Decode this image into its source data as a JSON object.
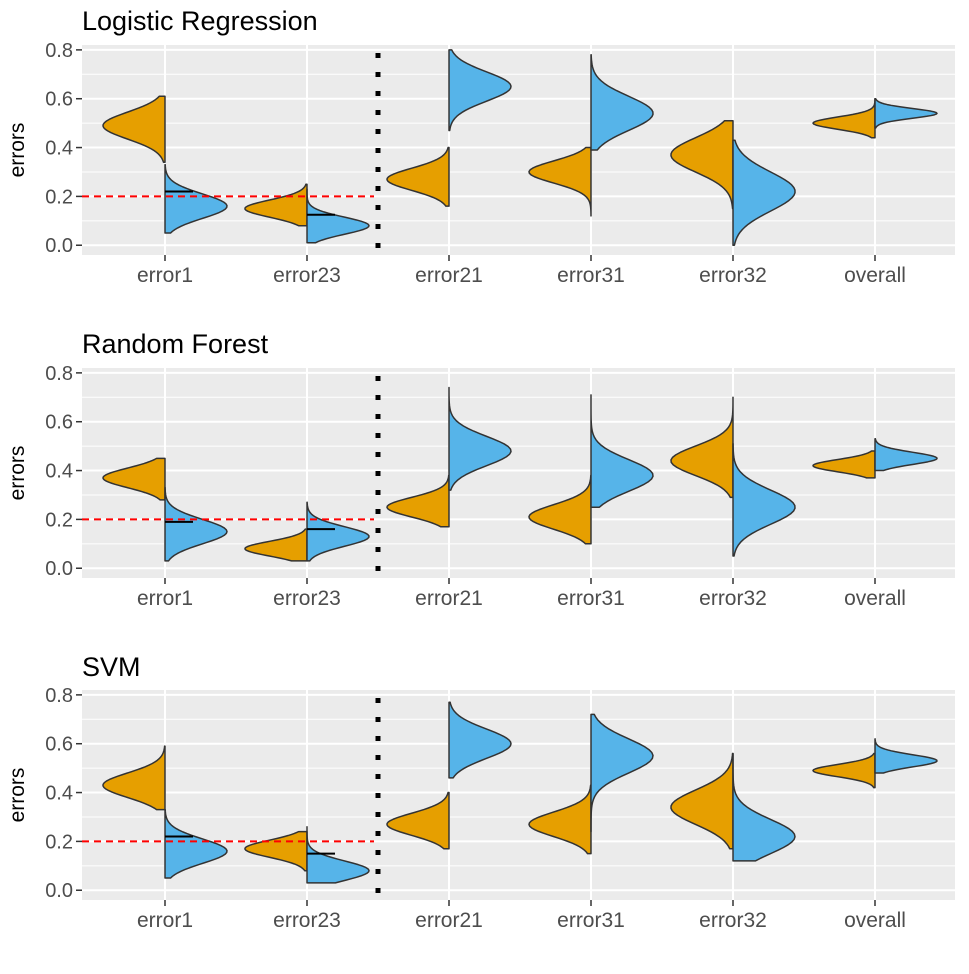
{
  "ylabel": "errors",
  "categories": [
    "error1",
    "error23",
    "error21",
    "error31",
    "error32",
    "overall"
  ],
  "yticks": [
    "0.0",
    "0.2",
    "0.4",
    "0.6",
    "0.8"
  ],
  "ylim": [
    -0.04,
    0.82
  ],
  "reference_line": 0.2,
  "divider_after_category": "error23",
  "colors": {
    "panel_bg": "#ebebeb",
    "grid": "#ffffff",
    "orange": "#e69f00",
    "blue": "#56b4e9",
    "outline": "#333333",
    "refline": "#ff0000",
    "divider": "#000000",
    "tick_text": "#4d4d4d"
  },
  "chart_data": [
    {
      "type": "split-violin",
      "title": "Logistic Regression",
      "ylabel": "errors",
      "categories": [
        "error1",
        "error23",
        "error21",
        "error31",
        "error32",
        "overall"
      ],
      "series": [
        {
          "name": "orange",
          "color": "#e69f00",
          "side": "left",
          "violins": [
            {
              "range": [
                0.34,
                0.61
              ],
              "mode": 0.49,
              "spread": 0.055
            },
            {
              "range": [
                0.08,
                0.25
              ],
              "mode": 0.15,
              "spread": 0.035
            },
            {
              "range": [
                0.16,
                0.4
              ],
              "mode": 0.27,
              "spread": 0.045
            },
            {
              "range": [
                0.12,
                0.4
              ],
              "mode": 0.3,
              "spread": 0.045
            },
            {
              "range": [
                0.15,
                0.51
              ],
              "mode": 0.37,
              "spread": 0.07
            },
            {
              "range": [
                0.44,
                0.6
              ],
              "mode": 0.5,
              "spread": 0.025
            }
          ]
        },
        {
          "name": "blue",
          "color": "#56b4e9",
          "side": "right",
          "violins": [
            {
              "range": [
                0.05,
                0.33
              ],
              "mode": 0.16,
              "spread": 0.05
            },
            {
              "range": [
                0.01,
                0.23
              ],
              "mode": 0.08,
              "spread": 0.035
            },
            {
              "range": [
                0.47,
                0.8
              ],
              "mode": 0.65,
              "spread": 0.06
            },
            {
              "range": [
                0.39,
                0.78
              ],
              "mode": 0.54,
              "spread": 0.07
            },
            {
              "range": [
                0.0,
                0.43
              ],
              "mode": 0.22,
              "spread": 0.08
            },
            {
              "range": [
                0.48,
                0.6
              ],
              "mode": 0.54,
              "spread": 0.02
            }
          ]
        }
      ],
      "median_marks": [
        {
          "category": "error1",
          "value": 0.22
        },
        {
          "category": "error23",
          "value": 0.125
        }
      ],
      "reference_line": 0.2,
      "ylim": [
        -0.04,
        0.82
      ]
    },
    {
      "type": "split-violin",
      "title": "Random Forest",
      "ylabel": "errors",
      "categories": [
        "error1",
        "error23",
        "error21",
        "error31",
        "error32",
        "overall"
      ],
      "series": [
        {
          "name": "orange",
          "color": "#e69f00",
          "side": "left",
          "violins": [
            {
              "range": [
                0.28,
                0.45
              ],
              "mode": 0.37,
              "spread": 0.04
            },
            {
              "range": [
                0.03,
                0.16
              ],
              "mode": 0.08,
              "spread": 0.03
            },
            {
              "range": [
                0.17,
                0.38
              ],
              "mode": 0.25,
              "spread": 0.04
            },
            {
              "range": [
                0.1,
                0.38
              ],
              "mode": 0.21,
              "spread": 0.05
            },
            {
              "range": [
                0.29,
                0.7
              ],
              "mode": 0.44,
              "spread": 0.06
            },
            {
              "range": [
                0.37,
                0.48
              ],
              "mode": 0.42,
              "spread": 0.025
            }
          ]
        },
        {
          "name": "blue",
          "color": "#56b4e9",
          "side": "right",
          "violins": [
            {
              "range": [
                0.03,
                0.33
              ],
              "mode": 0.15,
              "spread": 0.05
            },
            {
              "range": [
                0.03,
                0.27
              ],
              "mode": 0.13,
              "spread": 0.04
            },
            {
              "range": [
                0.32,
                0.74
              ],
              "mode": 0.48,
              "spread": 0.06
            },
            {
              "range": [
                0.25,
                0.71
              ],
              "mode": 0.38,
              "spread": 0.065
            },
            {
              "range": [
                0.05,
                0.51
              ],
              "mode": 0.25,
              "spread": 0.07
            },
            {
              "range": [
                0.4,
                0.53
              ],
              "mode": 0.45,
              "spread": 0.025
            }
          ]
        }
      ],
      "median_marks": [
        {
          "category": "error1",
          "value": 0.19
        },
        {
          "category": "error23",
          "value": 0.16
        }
      ],
      "reference_line": 0.2,
      "ylim": [
        -0.04,
        0.82
      ]
    },
    {
      "type": "split-violin",
      "title": "SVM",
      "ylabel": "errors",
      "categories": [
        "error1",
        "error23",
        "error21",
        "error31",
        "error32",
        "overall"
      ],
      "series": [
        {
          "name": "orange",
          "color": "#e69f00",
          "side": "left",
          "violins": [
            {
              "range": [
                0.33,
                0.59
              ],
              "mode": 0.43,
              "spread": 0.05
            },
            {
              "range": [
                0.08,
                0.24
              ],
              "mode": 0.17,
              "spread": 0.035
            },
            {
              "range": [
                0.17,
                0.4
              ],
              "mode": 0.27,
              "spread": 0.045
            },
            {
              "range": [
                0.15,
                0.43
              ],
              "mode": 0.27,
              "spread": 0.05
            },
            {
              "range": [
                0.17,
                0.56
              ],
              "mode": 0.34,
              "spread": 0.07
            },
            {
              "range": [
                0.42,
                0.56
              ],
              "mode": 0.49,
              "spread": 0.025
            }
          ]
        },
        {
          "name": "blue",
          "color": "#56b4e9",
          "side": "right",
          "violins": [
            {
              "range": [
                0.05,
                0.33
              ],
              "mode": 0.16,
              "spread": 0.05
            },
            {
              "range": [
                0.03,
                0.26
              ],
              "mode": 0.08,
              "spread": 0.04
            },
            {
              "range": [
                0.46,
                0.77
              ],
              "mode": 0.6,
              "spread": 0.06
            },
            {
              "range": [
                0.24,
                0.72
              ],
              "mode": 0.55,
              "spread": 0.07
            },
            {
              "range": [
                0.12,
                0.56
              ],
              "mode": 0.22,
              "spread": 0.07
            },
            {
              "range": [
                0.48,
                0.62
              ],
              "mode": 0.53,
              "spread": 0.025
            }
          ]
        }
      ],
      "median_marks": [
        {
          "category": "error1",
          "value": 0.22
        },
        {
          "category": "error23",
          "value": 0.15
        }
      ],
      "reference_line": 0.2,
      "ylim": [
        -0.04,
        0.82
      ]
    }
  ]
}
